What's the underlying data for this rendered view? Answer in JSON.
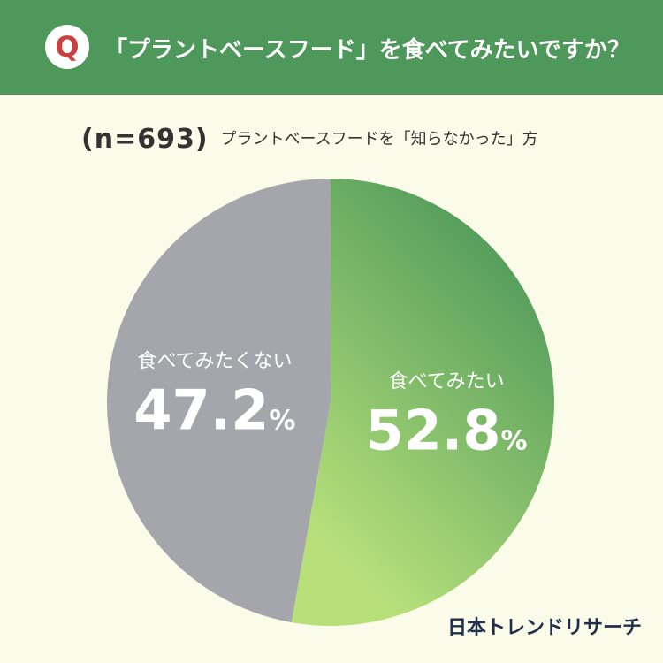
{
  "header": {
    "q_label": "Q",
    "question": "「プラントベースフード」を食べてみたいですか？",
    "color": "#4d985a"
  },
  "subtitle": {
    "n": "(n=693)",
    "description": "プラントベースフードを「知らなかった」方"
  },
  "chart_data": {
    "type": "pie",
    "title": "「プラントベースフード」を食べてみたいですか？",
    "labels": [
      "食べてみたい",
      "食べてみたくない"
    ],
    "values": [
      52.8,
      47.2
    ],
    "unit": "%",
    "colors": [
      "#6aaf5e",
      "#a5a6ab"
    ]
  },
  "footer": {
    "logo": "日本トレンドリサーチ"
  }
}
